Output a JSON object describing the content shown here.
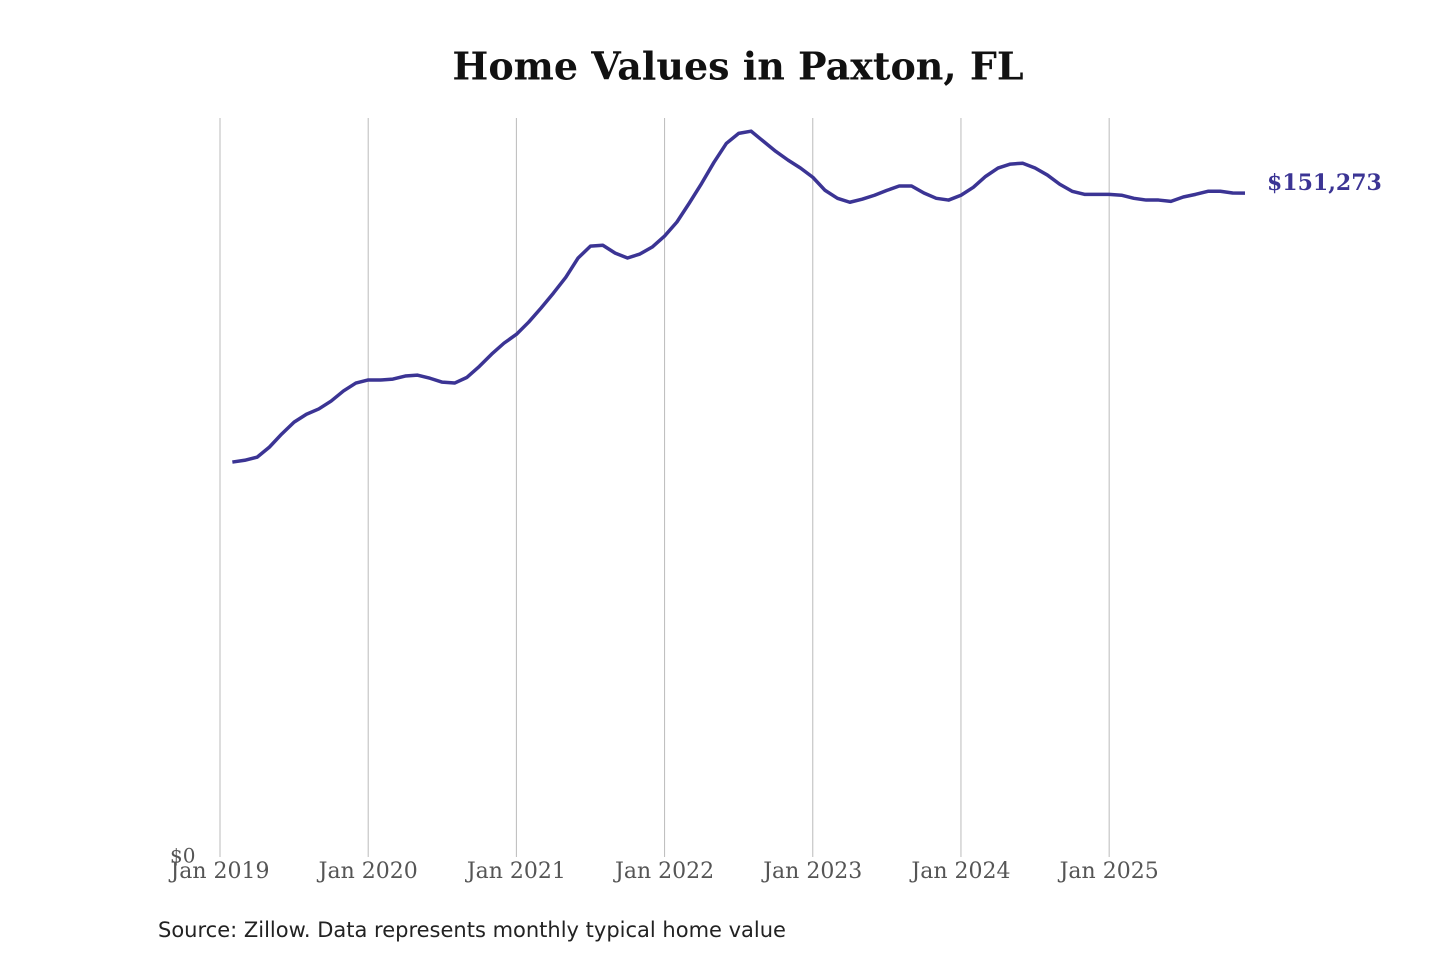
{
  "chart_data": {
    "type": "line",
    "title": "Home Values in Paxton, FL",
    "source": "Source: Zillow. Data represents monthly typical home value",
    "x": [
      "2019-02",
      "2019-03",
      "2019-04",
      "2019-05",
      "2019-06",
      "2019-07",
      "2019-08",
      "2019-09",
      "2019-10",
      "2019-11",
      "2019-12",
      "2020-01",
      "2020-02",
      "2020-03",
      "2020-04",
      "2020-05",
      "2020-06",
      "2020-07",
      "2020-08",
      "2020-09",
      "2020-10",
      "2020-11",
      "2020-12",
      "2021-01",
      "2021-02",
      "2021-03",
      "2021-04",
      "2021-05",
      "2021-06",
      "2021-07",
      "2021-08",
      "2021-09",
      "2021-10",
      "2021-11",
      "2021-12",
      "2022-01",
      "2022-02",
      "2022-03",
      "2022-04",
      "2022-05",
      "2022-06",
      "2022-07",
      "2022-08",
      "2022-09",
      "2022-10",
      "2022-11",
      "2022-12",
      "2023-01",
      "2023-02",
      "2023-03",
      "2023-04",
      "2023-05",
      "2023-06",
      "2023-07",
      "2023-08",
      "2023-09",
      "2023-10",
      "2023-11",
      "2023-12",
      "2024-01",
      "2024-02",
      "2024-03",
      "2024-04",
      "2024-05",
      "2024-06",
      "2024-07",
      "2024-08",
      "2024-09",
      "2024-10",
      "2024-11",
      "2024-12",
      "2025-01",
      "2025-02",
      "2025-03",
      "2025-04",
      "2025-05",
      "2025-06",
      "2025-07",
      "2025-08",
      "2025-09",
      "2025-10",
      "2025-11",
      "2025-12"
    ],
    "series": [
      {
        "color": "#3b3494",
        "values": [
          90000,
          90400,
          91100,
          93400,
          96400,
          99100,
          100900,
          102100,
          103900,
          106200,
          108000,
          108700,
          108700,
          108900,
          109600,
          109800,
          109100,
          108200,
          108000,
          109300,
          111800,
          114600,
          117100,
          119100,
          121900,
          125100,
          128500,
          132100,
          136500,
          139200,
          139400,
          137600,
          136500,
          137400,
          139000,
          141500,
          144700,
          149000,
          153500,
          158300,
          162600,
          164900,
          165400,
          163100,
          160800,
          158800,
          157000,
          154900,
          151900,
          150100,
          149200,
          149900,
          150800,
          151900,
          152900,
          152900,
          151300,
          150100,
          149700,
          150800,
          152600,
          155100,
          157000,
          157900,
          158100,
          157000,
          155400,
          153300,
          151700,
          151000,
          151000,
          151000,
          150800,
          150100,
          149700,
          149700,
          149400,
          150400,
          151000,
          151700,
          151700,
          151300,
          151273
        ],
        "value_labels": [
          null,
          null,
          null,
          null,
          null,
          null,
          null,
          null,
          null,
          null,
          null,
          null,
          null,
          null,
          null,
          null,
          null,
          null,
          null,
          null,
          null,
          null,
          null,
          null,
          null,
          null,
          null,
          null,
          null,
          null,
          null,
          null,
          null,
          null,
          null,
          null,
          null,
          null,
          null,
          null,
          null,
          null,
          null,
          null,
          null,
          null,
          null,
          null,
          null,
          null,
          null,
          null,
          null,
          null,
          null,
          null,
          null,
          null,
          null,
          null,
          null,
          null,
          null,
          null,
          null,
          null,
          null,
          null,
          null,
          null,
          null,
          null,
          null,
          null,
          null,
          null,
          null,
          null,
          null,
          null,
          null,
          null,
          "$151,273"
        ]
      }
    ],
    "xlim": [
      "2019-01",
      "2025-12"
    ],
    "xticks": [
      {
        "value": "2019-01",
        "label": "Jan 2019"
      },
      {
        "value": "2020-01",
        "label": "Jan 2020"
      },
      {
        "value": "2021-01",
        "label": "Jan 2021"
      },
      {
        "value": "2022-01",
        "label": "Jan 2022"
      },
      {
        "value": "2023-01",
        "label": "Jan 2023"
      },
      {
        "value": "2024-01",
        "label": "Jan 2024"
      },
      {
        "value": "2025-01",
        "label": "Jan 2025"
      }
    ],
    "ylim": [
      0,
      168400
    ],
    "yticks": [
      {
        "value": 0,
        "label": "$0"
      }
    ],
    "grid": true
  }
}
